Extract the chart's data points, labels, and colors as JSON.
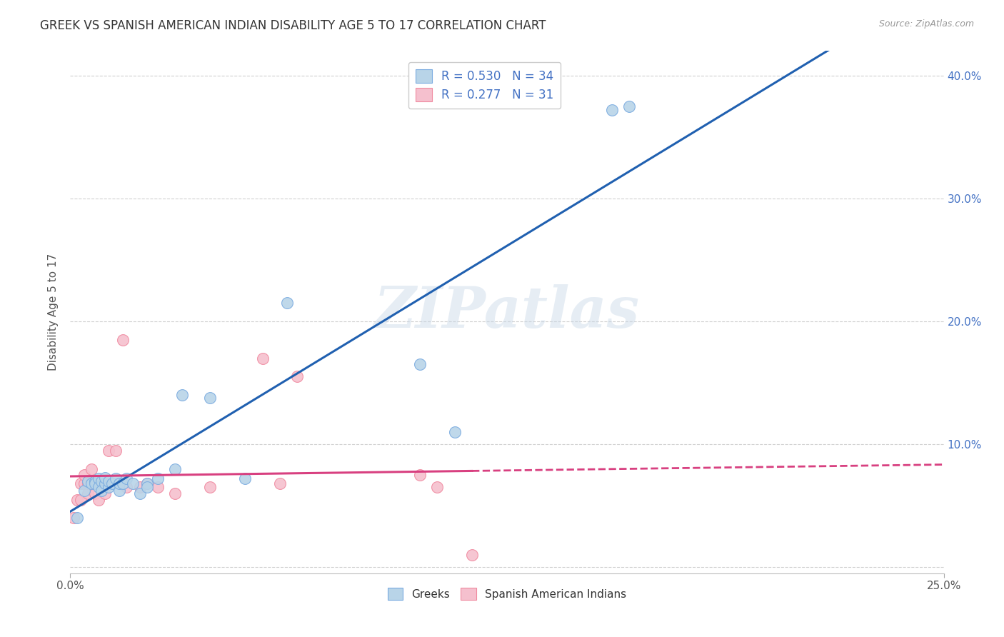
{
  "title": "GREEK VS SPANISH AMERICAN INDIAN DISABILITY AGE 5 TO 17 CORRELATION CHART",
  "source": "Source: ZipAtlas.com",
  "ylabel": "Disability Age 5 to 17",
  "xlim": [
    0.0,
    0.25
  ],
  "ylim": [
    -0.005,
    0.42
  ],
  "xticks": [
    0.0,
    0.25
  ],
  "xtick_labels": [
    "0.0%",
    "25.0%"
  ],
  "ytick_right": [
    0.0,
    0.1,
    0.2,
    0.3,
    0.4
  ],
  "ytick_right_labels": [
    "",
    "10.0%",
    "20.0%",
    "30.0%",
    "40.0%"
  ],
  "watermark": "ZIPatlas",
  "legend_r1": "R = 0.530",
  "legend_n1": "N = 34",
  "legend_r2": "R = 0.277",
  "legend_n2": "N = 31",
  "blue_scatter_face": "#b8d4e8",
  "blue_scatter_edge": "#7aabe0",
  "pink_scatter_face": "#f5c0ce",
  "pink_scatter_edge": "#f08aa0",
  "blue_line_color": "#2060b0",
  "pink_line_color": "#d84080",
  "greek_x": [
    0.002,
    0.004,
    0.005,
    0.006,
    0.007,
    0.007,
    0.008,
    0.008,
    0.009,
    0.009,
    0.01,
    0.01,
    0.011,
    0.011,
    0.012,
    0.013,
    0.014,
    0.014,
    0.015,
    0.016,
    0.018,
    0.02,
    0.022,
    0.022,
    0.025,
    0.03,
    0.032,
    0.04,
    0.05,
    0.062,
    0.1,
    0.11,
    0.155,
    0.16
  ],
  "greek_y": [
    0.04,
    0.062,
    0.07,
    0.068,
    0.07,
    0.068,
    0.072,
    0.065,
    0.07,
    0.062,
    0.068,
    0.073,
    0.065,
    0.07,
    0.068,
    0.072,
    0.062,
    0.068,
    0.068,
    0.072,
    0.068,
    0.06,
    0.068,
    0.065,
    0.072,
    0.08,
    0.14,
    0.138,
    0.072,
    0.215,
    0.165,
    0.11,
    0.372,
    0.375
  ],
  "spanish_x": [
    0.001,
    0.002,
    0.003,
    0.003,
    0.004,
    0.004,
    0.005,
    0.005,
    0.006,
    0.006,
    0.007,
    0.007,
    0.008,
    0.009,
    0.01,
    0.01,
    0.011,
    0.013,
    0.015,
    0.016,
    0.02,
    0.022,
    0.025,
    0.03,
    0.04,
    0.055,
    0.06,
    0.065,
    0.1,
    0.105,
    0.115
  ],
  "spanish_y": [
    0.04,
    0.055,
    0.068,
    0.055,
    0.068,
    0.075,
    0.06,
    0.068,
    0.07,
    0.08,
    0.06,
    0.068,
    0.055,
    0.065,
    0.068,
    0.06,
    0.095,
    0.095,
    0.185,
    0.065,
    0.065,
    0.068,
    0.065,
    0.06,
    0.065,
    0.17,
    0.068,
    0.155,
    0.075,
    0.065,
    0.01
  ],
  "background_color": "#ffffff",
  "grid_color": "#d0d0d0"
}
